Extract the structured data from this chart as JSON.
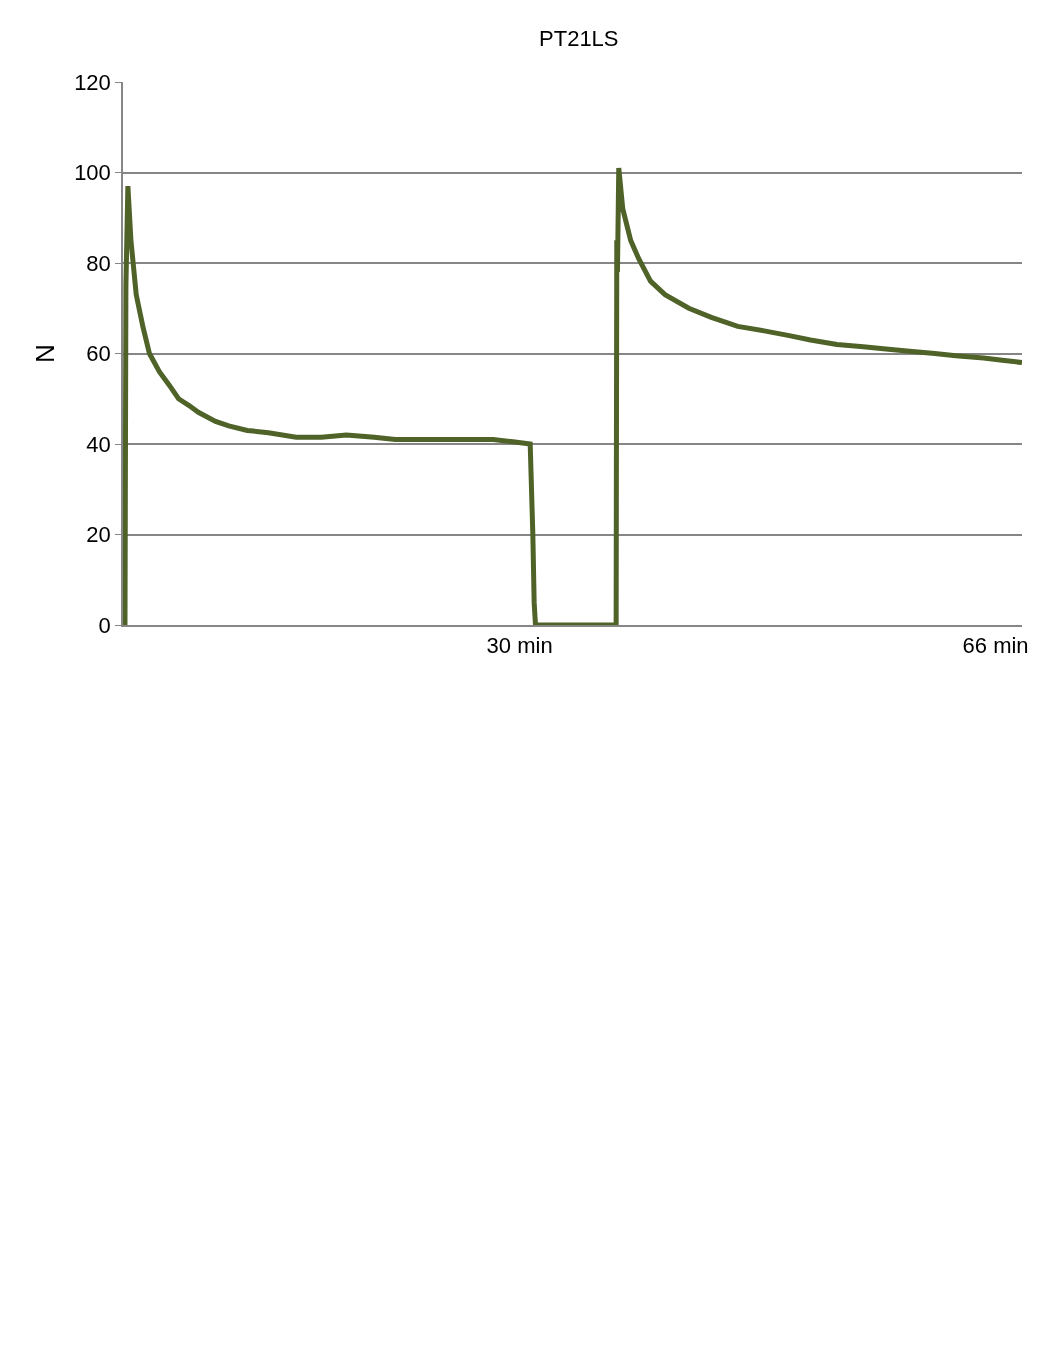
{
  "chart_data": {
    "type": "line",
    "title": "PT21LS",
    "ylabel": "N",
    "series": [
      {
        "color": "#4f6228",
        "x": [
          0,
          0.15,
          0.22,
          0.37,
          0.6,
          1.0,
          1.5,
          2.0,
          2.75,
          3.5,
          4.2,
          5.0,
          5.7,
          7.0,
          8.0,
          9.4,
          11.0,
          13.1,
          15.0,
          16.9,
          19.0,
          20.6,
          22.5,
          24.3,
          26.0,
          28.0,
          29.5,
          30.8,
          31.0,
          31.1,
          31.2,
          34.0,
          37.3,
          37.35,
          37.4,
          37.5,
          37.8,
          38.4,
          39.0,
          39.9,
          41.0,
          42.8,
          44.5,
          46.5,
          48.5,
          50.3,
          52.0,
          54.0,
          56.0,
          57.7,
          59.5,
          61.4,
          63.0,
          65.1,
          66.5,
          68.0
        ],
        "values": [
          0,
          0,
          75,
          97,
          85,
          73,
          66,
          60,
          56,
          53,
          50,
          48.5,
          47,
          45,
          44,
          43,
          42.5,
          41.5,
          41.5,
          42,
          41.5,
          41,
          41,
          41,
          41,
          41,
          40.5,
          40,
          20,
          5,
          0,
          0,
          0,
          85,
          78,
          101,
          92,
          85,
          81,
          76,
          73,
          70,
          68,
          66,
          65,
          64,
          63,
          62,
          61.5,
          61,
          60.5,
          60,
          59.5,
          59,
          58.5,
          58
        ]
      }
    ],
    "xlim": [
      0,
      68
    ],
    "xticks": [
      {
        "value": 30,
        "label": "30 min"
      },
      {
        "value": 66,
        "label": "66 min"
      }
    ],
    "ylim": [
      0,
      120
    ],
    "yticks": [
      0,
      20,
      40,
      60,
      80,
      100,
      120
    ],
    "grid": "y",
    "line_style": "solid",
    "marker": "none"
  }
}
